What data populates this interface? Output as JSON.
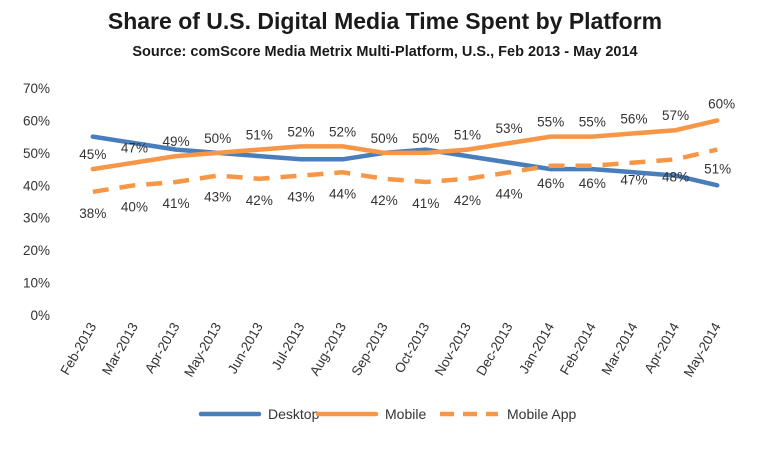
{
  "chart_data": {
    "type": "line",
    "title": "Share of U.S. Digital Media Time Spent by Platform",
    "subtitle": "Source: comScore Media Metrix Multi-Platform, U.S., Feb 2013 - May 2014",
    "xlabel": "",
    "ylabel": "",
    "categories": [
      "Feb-2013",
      "Mar-2013",
      "Apr-2013",
      "May-2013",
      "Jun-2013",
      "Jul-2013",
      "Aug-2013",
      "Sep-2013",
      "Oct-2013",
      "Nov-2013",
      "Dec-2013",
      "Jan-2014",
      "Feb-2014",
      "Mar-2014",
      "Apr-2014",
      "May-2014"
    ],
    "y_ticks": [
      "0%",
      "10%",
      "20%",
      "30%",
      "40%",
      "50%",
      "60%",
      "70%"
    ],
    "ylim": [
      0,
      70
    ],
    "grid": false,
    "legend_position": "bottom",
    "series": [
      {
        "name": "Desktop",
        "color": "#4a7ebb",
        "dash": false,
        "labeled": false,
        "values": [
          55,
          53,
          51,
          50,
          49,
          48,
          48,
          50,
          51,
          49,
          47,
          45,
          45,
          44,
          43,
          40
        ]
      },
      {
        "name": "Mobile",
        "color": "#f79646",
        "dash": false,
        "labeled": true,
        "values": [
          45,
          47,
          49,
          50,
          51,
          52,
          52,
          50,
          50,
          51,
          53,
          55,
          55,
          56,
          57,
          60
        ]
      },
      {
        "name": "Mobile App",
        "color": "#f79646",
        "dash": true,
        "labeled": true,
        "values": [
          38,
          40,
          41,
          43,
          42,
          43,
          44,
          42,
          41,
          42,
          44,
          46,
          46,
          47,
          48,
          51
        ]
      }
    ],
    "data_labels": {
      "Mobile": [
        "45%",
        "47%",
        "49%",
        "50%",
        "51%",
        "52%",
        "52%",
        "50%",
        "50%",
        "51%",
        "53%",
        "55%",
        "55%",
        "56%",
        "57%",
        "60%"
      ],
      "Mobile App": [
        "38%",
        "40%",
        "41%",
        "43%",
        "42%",
        "43%",
        "44%",
        "42%",
        "41%",
        "42%",
        "44%",
        "46%",
        "46%",
        "47%",
        "48%",
        "51%"
      ]
    }
  }
}
